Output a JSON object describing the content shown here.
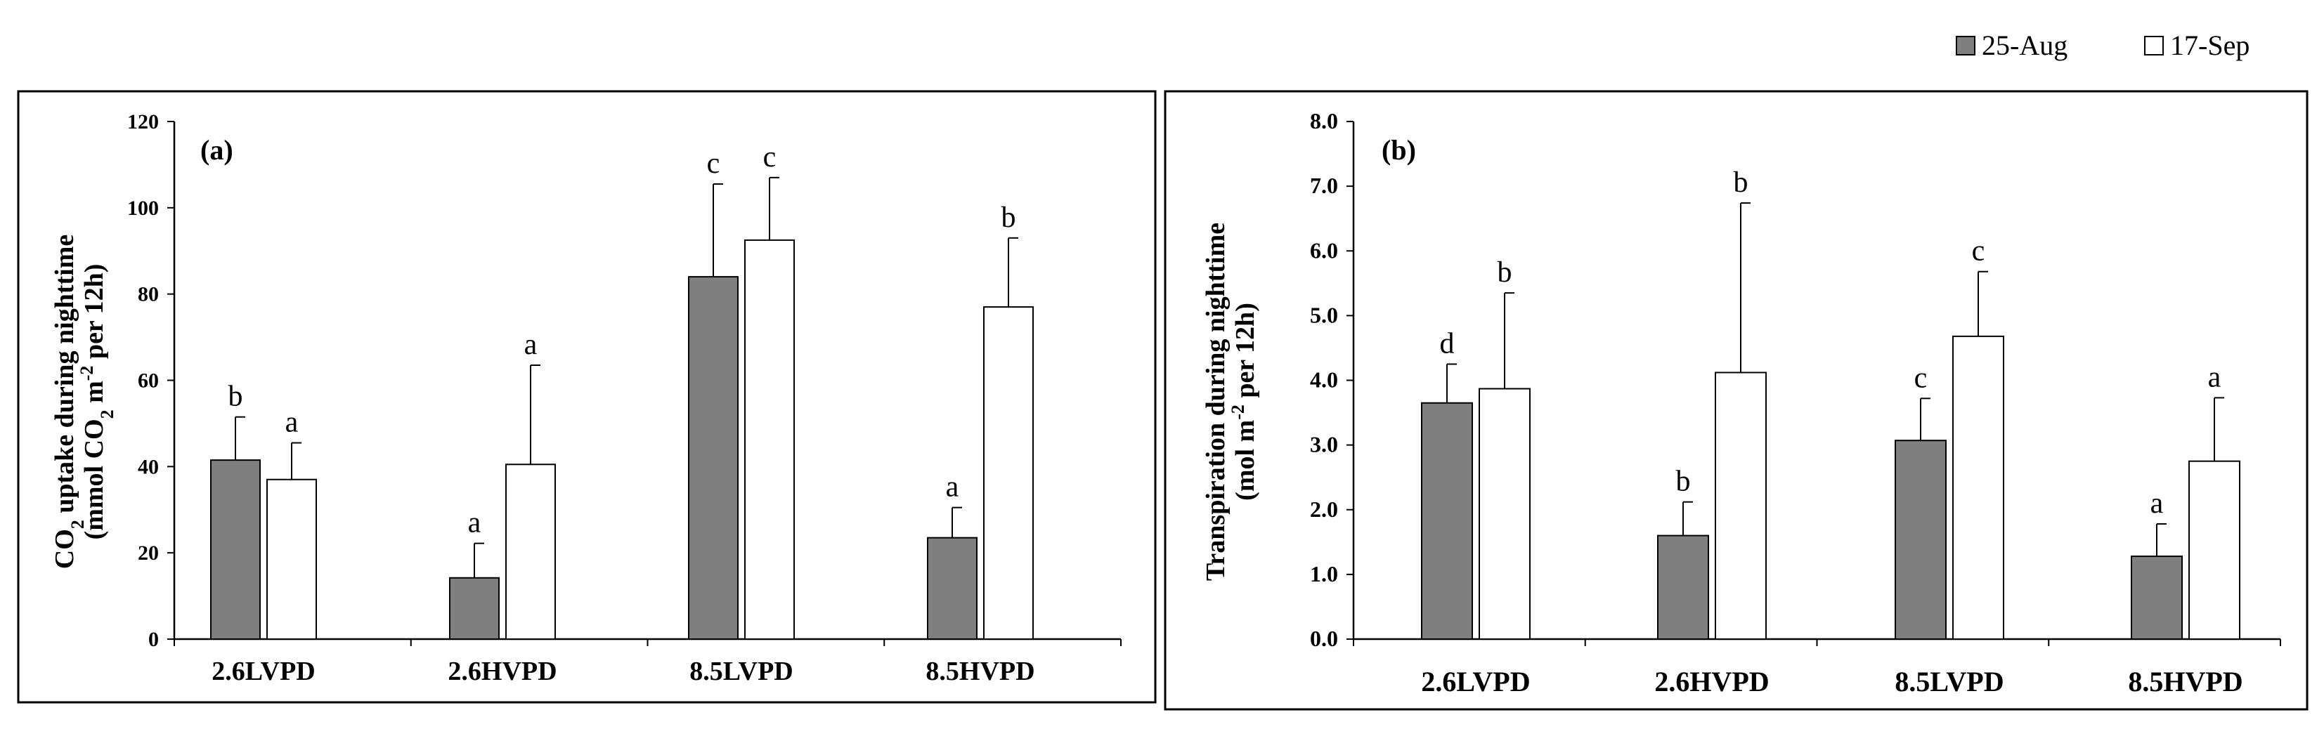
{
  "legend": {
    "position": "top-right",
    "entries": [
      {
        "label": "25-Aug",
        "color": "#7f7f7f"
      },
      {
        "label": "17-Sep",
        "color": "#ffffff"
      }
    ]
  },
  "chart_data": [
    {
      "type": "bar",
      "panel_label": "(a)",
      "ylabel_lines": [
        [
          {
            "t": "CO"
          },
          {
            "t": "2",
            "sub": true
          },
          {
            "t": " uptake during nighttime"
          }
        ],
        [
          {
            "t": "(mmol CO"
          },
          {
            "t": "2",
            "sub": true
          },
          {
            "t": " m"
          },
          {
            "t": "-2",
            "sup": true
          },
          {
            "t": " per 12h)"
          }
        ]
      ],
      "ylim": [
        0,
        120
      ],
      "yticks": [
        0,
        20,
        40,
        60,
        80,
        100,
        120
      ],
      "ytick_labels": [
        "0",
        "20",
        "40",
        "60",
        "80",
        "100",
        "120"
      ],
      "categories": [
        "2.6LVPD",
        "2.6HVPD",
        "8.5LVPD",
        "8.5HVPD"
      ],
      "series": [
        {
          "name": "25-Aug",
          "values": [
            41.5,
            14.2,
            84.0,
            23.5
          ],
          "errors": [
            10.0,
            8.0,
            21.5,
            7.0
          ],
          "letters": [
            "b",
            "a",
            "c",
            "a"
          ]
        },
        {
          "name": "17-Sep",
          "values": [
            37.0,
            40.5,
            92.5,
            77.0
          ],
          "errors": [
            8.5,
            23.0,
            14.5,
            16.0
          ],
          "letters": [
            "a",
            "a",
            "c",
            "b"
          ]
        }
      ]
    },
    {
      "type": "bar",
      "panel_label": "(b)",
      "ylabel_lines": [
        [
          {
            "t": "Transpiration during nighttime"
          }
        ],
        [
          {
            "t": "(mol m"
          },
          {
            "t": "-2",
            "sup": true
          },
          {
            "t": " per 12h)"
          }
        ]
      ],
      "ylim": [
        0,
        8
      ],
      "yticks": [
        0,
        1,
        2,
        3,
        4,
        5,
        6,
        7,
        8
      ],
      "ytick_labels": [
        "0.0",
        "1.0",
        "2.0",
        "3.0",
        "4.0",
        "5.0",
        "6.0",
        "7.0",
        "8.0"
      ],
      "categories": [
        "2.6LVPD",
        "2.6HVPD",
        "8.5LVPD",
        "8.5HVPD"
      ],
      "series": [
        {
          "name": "25-Aug",
          "values": [
            3.65,
            1.6,
            3.07,
            1.28
          ],
          "errors": [
            0.6,
            0.52,
            0.65,
            0.5
          ],
          "letters": [
            "d",
            "b",
            "c",
            "a"
          ]
        },
        {
          "name": "17-Sep",
          "values": [
            3.87,
            4.12,
            4.68,
            2.75
          ],
          "errors": [
            1.48,
            2.62,
            1.0,
            0.98
          ],
          "letters": [
            "b",
            "b",
            "c",
            "a"
          ]
        }
      ]
    }
  ]
}
